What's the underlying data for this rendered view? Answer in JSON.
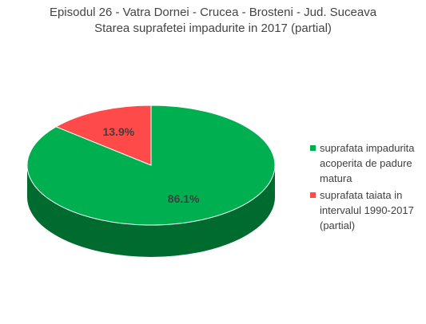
{
  "chart_data": {
    "type": "pie",
    "title": "Episodul 26 - Vatra Dornei - Crucea - Brosteni -  Jud. Suceava",
    "subtitle": "Starea suprafetei impadurite in 2017 (partial)",
    "three_d": true,
    "start_angle_deg": 0,
    "direction": "clockwise",
    "legend_position": "right",
    "slices": [
      {
        "label": "suprafata impadurita acoperita de padure matura",
        "value": 86.1,
        "value_label": "86.1%",
        "color": "#00B050",
        "dark_color": "#006B2E"
      },
      {
        "label": "suprafata taiata in intervalul 1990-2017 (partial)",
        "value": 13.9,
        "value_label": "13.9%",
        "color": "#FF4A4A",
        "dark_color": "#A82222"
      }
    ]
  }
}
